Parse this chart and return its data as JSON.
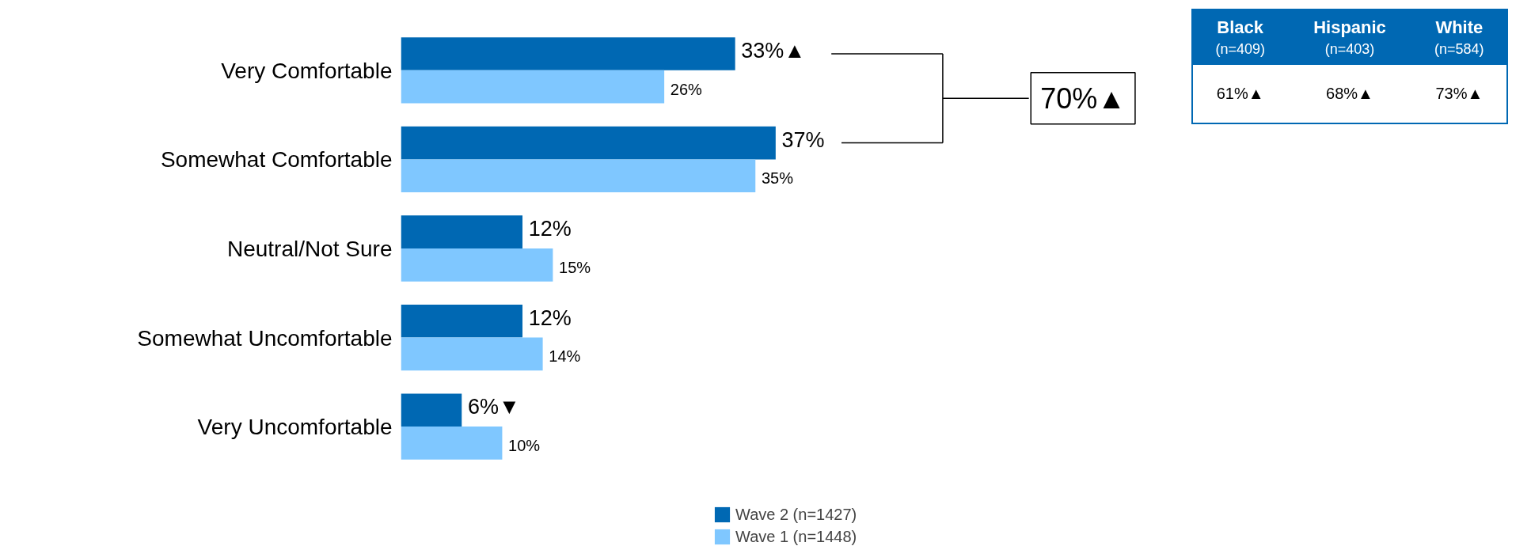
{
  "chart_data": {
    "type": "bar",
    "orientation": "horizontal",
    "categories": [
      "Very Comfortable",
      "Somewhat Comfortable",
      "Neutral/Not Sure",
      "Somewhat Uncomfortable",
      "Very Uncomfortable"
    ],
    "series": [
      {
        "name": "Wave 2 (n=1427)",
        "color": "#0068b3",
        "values": [
          33,
          37,
          12,
          12,
          6
        ],
        "value_labels": [
          "33%▲",
          "37%",
          "12%",
          "12%",
          "6%▼"
        ]
      },
      {
        "name": "Wave 1 (n=1448)",
        "color": "#7fc7ff",
        "values": [
          26,
          35,
          15,
          14,
          10
        ],
        "value_labels": [
          "26%",
          "35%",
          "15%",
          "14%",
          "10%"
        ]
      }
    ],
    "tick_labels": "y",
    "grid": false,
    "legend": "bottom",
    "annotations": [
      "70%▲",
      "Black",
      "(n=409)",
      "61%▲",
      "Hispanic",
      "(n=403)",
      "68%▲",
      "White",
      "(n=584)",
      "73%▲"
    ]
  }
}
